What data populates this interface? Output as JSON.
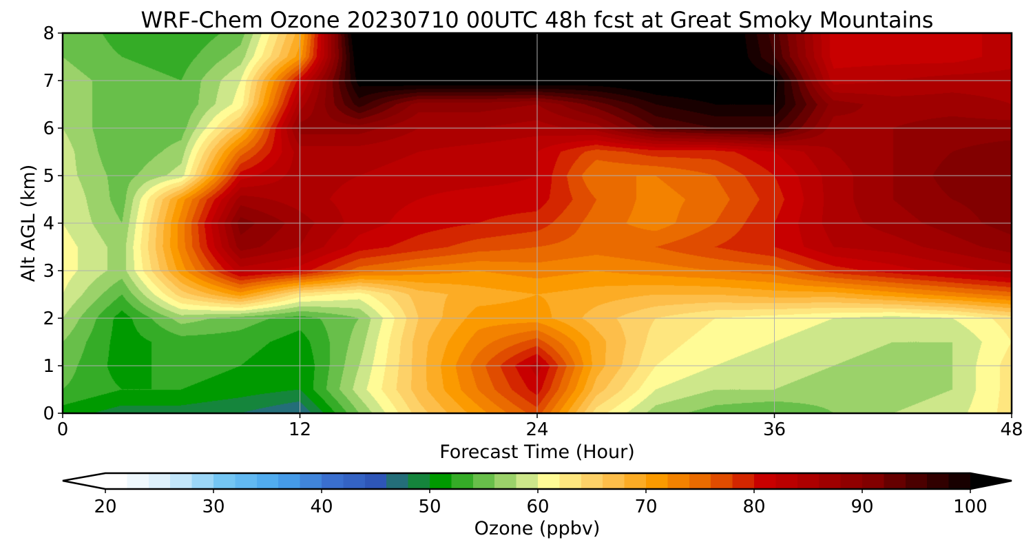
{
  "chart_data": {
    "type": "heatmap",
    "title": "WRF-Chem Ozone  20230710 00UTC 48h fcst at Great Smoky Mountains",
    "xlabel": "Forecast Time (Hour)",
    "ylabel": "Alt AGL (km)",
    "xlim": [
      0,
      48
    ],
    "ylim": [
      0,
      8
    ],
    "x_ticks": [
      0,
      12,
      24,
      36,
      48
    ],
    "y_ticks": [
      0,
      1,
      2,
      3,
      4,
      5,
      6,
      7,
      8
    ],
    "grid": true,
    "x": [
      0,
      3,
      6,
      9,
      12,
      15,
      18,
      21,
      24,
      27,
      30,
      33,
      36,
      39,
      42,
      45,
      48
    ],
    "y": [
      0,
      0.5,
      1,
      1.5,
      2,
      2.5,
      3,
      3.5,
      4,
      4.5,
      5,
      5.5,
      6,
      6.5,
      7,
      7.5,
      8
    ],
    "z": [
      [
        50,
        48,
        48,
        47,
        45,
        55,
        64,
        70,
        76,
        62,
        56,
        54,
        53,
        55,
        57,
        58,
        62
      ],
      [
        53,
        51,
        51,
        50,
        49,
        58,
        66,
        73,
        80,
        66,
        59,
        57,
        57,
        56,
        56,
        57,
        62
      ],
      [
        54,
        50,
        52,
        51,
        49,
        57,
        66,
        74,
        82,
        68,
        61,
        59,
        58,
        57,
        56,
        57,
        62
      ],
      [
        55,
        50,
        52,
        52,
        50,
        56,
        66,
        72,
        76,
        68,
        62,
        60,
        59,
        58,
        57,
        57,
        61
      ],
      [
        57,
        50,
        56,
        54,
        52,
        55,
        65,
        70,
        70,
        66,
        63,
        61,
        60,
        59,
        58,
        59,
        62
      ],
      [
        59,
        53,
        64,
        70,
        62,
        60,
        66,
        68,
        69,
        68,
        67,
        67,
        68,
        68,
        70,
        72,
        74
      ],
      [
        60,
        56,
        70,
        82,
        80,
        74,
        72,
        71,
        72,
        71,
        72,
        73,
        74,
        78,
        80,
        82,
        84
      ],
      [
        60,
        56,
        72,
        88,
        85,
        80,
        78,
        76,
        75,
        74,
        75,
        77,
        79,
        83,
        84,
        86,
        88
      ],
      [
        59,
        55,
        72,
        90,
        86,
        82,
        80,
        79,
        78,
        74,
        72,
        75,
        79,
        84,
        86,
        88,
        90
      ],
      [
        59,
        54,
        70,
        86,
        84,
        82,
        81,
        80,
        80,
        75,
        72,
        74,
        78,
        84,
        87,
        89,
        90
      ],
      [
        58,
        54,
        58,
        80,
        84,
        83,
        82,
        82,
        81,
        73,
        73,
        75,
        79,
        84,
        87,
        90,
        91
      ],
      [
        58,
        53,
        56,
        74,
        84,
        84,
        83,
        82,
        81,
        76,
        78,
        78,
        81,
        85,
        87,
        89,
        90
      ],
      [
        57,
        53,
        54,
        66,
        88,
        88,
        85,
        85,
        84,
        86,
        93,
        95,
        95,
        86,
        87,
        88,
        88
      ],
      [
        56,
        54,
        53,
        60,
        84,
        96,
        88,
        88,
        87,
        92,
        97,
        99,
        99,
        88,
        86,
        86,
        85
      ],
      [
        56,
        54,
        53,
        59,
        80,
        100,
        102,
        102,
        102,
        101,
        102,
        102,
        100,
        82,
        83,
        84,
        84
      ],
      [
        55,
        53,
        52,
        56,
        70,
        102,
        104,
        104,
        104,
        104,
        104,
        104,
        95,
        80,
        80,
        80,
        82
      ],
      [
        55,
        52,
        51,
        54,
        68,
        104,
        104,
        104,
        104,
        104,
        104,
        104,
        94,
        80,
        79,
        80,
        82
      ]
    ],
    "colorbar": {
      "label": "Ozone  (ppbv)",
      "min": 20,
      "max": 100,
      "ticks": [
        20,
        30,
        40,
        50,
        60,
        70,
        80,
        90,
        100
      ],
      "extend": "both",
      "color_stops": [
        {
          "v": 20,
          "c": "#ffffff"
        },
        {
          "v": 25,
          "c": "#d6eefb"
        },
        {
          "v": 30,
          "c": "#74c6f4"
        },
        {
          "v": 35,
          "c": "#48a6ee"
        },
        {
          "v": 40,
          "c": "#3a6fcf"
        },
        {
          "v": 44,
          "c": "#2e56b8"
        },
        {
          "v": 47,
          "c": "#1f7a5a"
        },
        {
          "v": 50,
          "c": "#009a00"
        },
        {
          "v": 53,
          "c": "#4fb53a"
        },
        {
          "v": 56,
          "c": "#9bd26a"
        },
        {
          "v": 59,
          "c": "#e6f29a"
        },
        {
          "v": 60,
          "c": "#fffb96"
        },
        {
          "v": 65,
          "c": "#fdc75c"
        },
        {
          "v": 70,
          "c": "#fb9a00"
        },
        {
          "v": 75,
          "c": "#e65f00"
        },
        {
          "v": 80,
          "c": "#c80000"
        },
        {
          "v": 85,
          "c": "#a60000"
        },
        {
          "v": 90,
          "c": "#820000"
        },
        {
          "v": 95,
          "c": "#3d0000"
        },
        {
          "v": 100,
          "c": "#000000"
        }
      ]
    }
  }
}
